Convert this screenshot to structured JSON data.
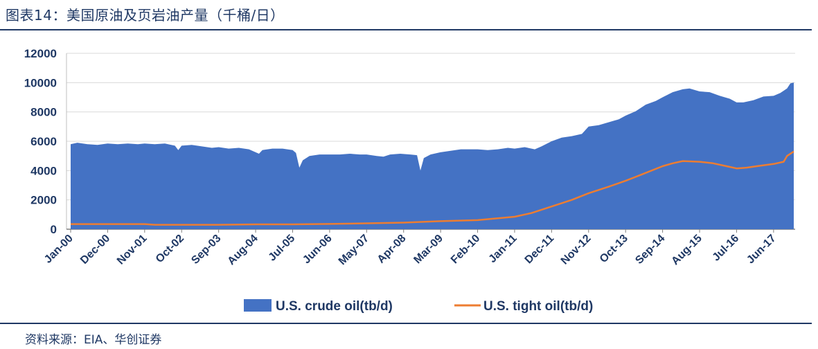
{
  "page": {
    "title": "图表14：美国原油及页岩油产量（千桶/日）",
    "source": "资料来源：EIA、华创证券"
  },
  "chart_data": {
    "type": "area",
    "title": "图表14：美国原油及页岩油产量（千桶/日）",
    "ylim": [
      0,
      12000
    ],
    "yticks": [
      0,
      2000,
      4000,
      6000,
      8000,
      10000,
      12000
    ],
    "x_start": "Jan-00",
    "x_end": "Dec-17",
    "xtick_labels": [
      "Jan-00",
      "Dec-00",
      "Nov-01",
      "Oct-02",
      "Sep-03",
      "Aug-04",
      "Jul-05",
      "Jun-06",
      "May-07",
      "Apr-08",
      "Mar-09",
      "Feb-10",
      "Jan-11",
      "Dec-11",
      "Nov-12",
      "Oct-13",
      "Sep-14",
      "Aug-15",
      "Jul-16",
      "Jun-17"
    ],
    "grid": true,
    "legend_position": "bottom",
    "colors": {
      "crude": "#4472c4",
      "tight": "#ed7d31",
      "text": "#1f3864"
    },
    "series": [
      {
        "name": "U.S. crude oil(tb/d)",
        "kind": "area",
        "points": [
          [
            "Jan-00",
            5800
          ],
          [
            "Mar-00",
            5900
          ],
          [
            "Jun-00",
            5800
          ],
          [
            "Sep-00",
            5750
          ],
          [
            "Dec-00",
            5850
          ],
          [
            "Mar-01",
            5800
          ],
          [
            "Jun-01",
            5850
          ],
          [
            "Sep-01",
            5800
          ],
          [
            "Nov-01",
            5850
          ],
          [
            "Feb-02",
            5800
          ],
          [
            "May-02",
            5850
          ],
          [
            "Aug-02",
            5700
          ],
          [
            "Sep-02",
            5400
          ],
          [
            "Oct-02",
            5700
          ],
          [
            "Jan-03",
            5750
          ],
          [
            "Apr-03",
            5650
          ],
          [
            "Jul-03",
            5550
          ],
          [
            "Sep-03",
            5600
          ],
          [
            "Dec-03",
            5500
          ],
          [
            "Mar-04",
            5550
          ],
          [
            "Jun-04",
            5450
          ],
          [
            "Sep-04",
            5150
          ],
          [
            "Oct-04",
            5400
          ],
          [
            "Jan-05",
            5500
          ],
          [
            "Apr-05",
            5500
          ],
          [
            "Jul-05",
            5400
          ],
          [
            "Aug-05",
            5200
          ],
          [
            "Sep-05",
            4200
          ],
          [
            "Oct-05",
            4700
          ],
          [
            "Dec-05",
            5000
          ],
          [
            "Mar-06",
            5100
          ],
          [
            "Jun-06",
            5100
          ],
          [
            "Sep-06",
            5100
          ],
          [
            "Dec-06",
            5150
          ],
          [
            "Mar-07",
            5100
          ],
          [
            "May-07",
            5100
          ],
          [
            "Aug-07",
            5000
          ],
          [
            "Oct-07",
            4950
          ],
          [
            "Dec-07",
            5100
          ],
          [
            "Mar-08",
            5150
          ],
          [
            "Jun-08",
            5100
          ],
          [
            "Aug-08",
            5050
          ],
          [
            "Sep-08",
            4000
          ],
          [
            "Oct-08",
            4850
          ],
          [
            "Dec-08",
            5100
          ],
          [
            "Mar-09",
            5250
          ],
          [
            "Jun-09",
            5350
          ],
          [
            "Sep-09",
            5450
          ],
          [
            "Dec-09",
            5450
          ],
          [
            "Feb-10",
            5450
          ],
          [
            "May-10",
            5400
          ],
          [
            "Aug-10",
            5450
          ],
          [
            "Nov-10",
            5550
          ],
          [
            "Jan-11",
            5500
          ],
          [
            "Apr-11",
            5600
          ],
          [
            "Jul-11",
            5450
          ],
          [
            "Sep-11",
            5650
          ],
          [
            "Dec-11",
            6000
          ],
          [
            "Mar-12",
            6250
          ],
          [
            "Jun-12",
            6350
          ],
          [
            "Sep-12",
            6500
          ],
          [
            "Nov-12",
            7000
          ],
          [
            "Feb-13",
            7100
          ],
          [
            "May-13",
            7300
          ],
          [
            "Aug-13",
            7500
          ],
          [
            "Oct-13",
            7750
          ],
          [
            "Jan-14",
            8050
          ],
          [
            "Apr-14",
            8500
          ],
          [
            "Jul-14",
            8750
          ],
          [
            "Sep-14",
            9000
          ],
          [
            "Dec-14",
            9350
          ],
          [
            "Mar-15",
            9550
          ],
          [
            "May-15",
            9600
          ],
          [
            "Aug-15",
            9400
          ],
          [
            "Nov-15",
            9350
          ],
          [
            "Feb-16",
            9100
          ],
          [
            "May-16",
            8900
          ],
          [
            "Jul-16",
            8650
          ],
          [
            "Sep-16",
            8650
          ],
          [
            "Dec-16",
            8800
          ],
          [
            "Mar-17",
            9050
          ],
          [
            "Jun-17",
            9100
          ],
          [
            "Aug-17",
            9300
          ],
          [
            "Oct-17",
            9600
          ],
          [
            "Nov-17",
            9950
          ],
          [
            "Dec-17",
            10000
          ]
        ]
      },
      {
        "name": "U.S. tight oil(tb/d)",
        "kind": "line",
        "points": [
          [
            "Jan-00",
            350
          ],
          [
            "Nov-01",
            350
          ],
          [
            "Feb-02",
            300
          ],
          [
            "Sep-03",
            300
          ],
          [
            "Aug-04",
            330
          ],
          [
            "Jul-05",
            330
          ],
          [
            "Jun-06",
            360
          ],
          [
            "May-07",
            400
          ],
          [
            "Apr-08",
            450
          ],
          [
            "Mar-09",
            550
          ],
          [
            "Feb-10",
            620
          ],
          [
            "Jan-11",
            850
          ],
          [
            "Jun-11",
            1100
          ],
          [
            "Dec-11",
            1550
          ],
          [
            "Jun-12",
            2000
          ],
          [
            "Nov-12",
            2450
          ],
          [
            "May-13",
            2900
          ],
          [
            "Oct-13",
            3300
          ],
          [
            "Mar-14",
            3750
          ],
          [
            "Sep-14",
            4300
          ],
          [
            "Dec-14",
            4500
          ],
          [
            "Mar-15",
            4650
          ],
          [
            "Aug-15",
            4600
          ],
          [
            "Dec-15",
            4500
          ],
          [
            "Apr-16",
            4300
          ],
          [
            "Jul-16",
            4150
          ],
          [
            "Oct-16",
            4200
          ],
          [
            "Jan-17",
            4300
          ],
          [
            "Jun-17",
            4450
          ],
          [
            "Sep-17",
            4600
          ],
          [
            "Oct-17",
            5000
          ],
          [
            "Dec-17",
            5300
          ]
        ]
      }
    ]
  }
}
